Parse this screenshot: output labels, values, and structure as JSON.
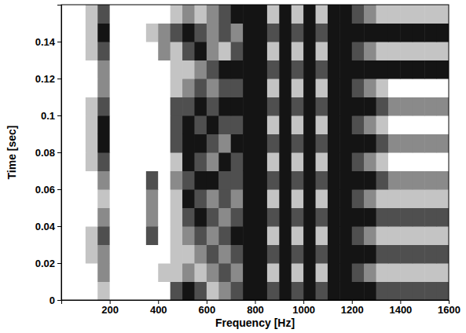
{
  "chart_data": {
    "type": "heatmap",
    "xlabel": "Frequency [Hz]",
    "ylabel": "Time [sec]",
    "xlim": [
      0,
      1600
    ],
    "xticks": [
      200,
      400,
      600,
      800,
      1000,
      1200,
      1400,
      1600
    ],
    "ylim": [
      0,
      0.16
    ],
    "yticks": [
      0,
      0.02,
      0.04,
      0.06,
      0.08,
      0.1,
      0.12,
      0.14
    ],
    "x_bins": [
      0,
      50,
      100,
      150,
      200,
      250,
      300,
      350,
      400,
      450,
      500,
      550,
      600,
      650,
      700,
      750,
      800,
      850,
      900,
      950,
      1000,
      1050,
      1100,
      1150,
      1200,
      1250,
      1300,
      1350,
      1400,
      1450,
      1500,
      1550,
      1600
    ],
    "y_bins": [
      0,
      0.01,
      0.02,
      0.03,
      0.04,
      0.05,
      0.06,
      0.07,
      0.08,
      0.09,
      0.1,
      0.11,
      0.12,
      0.13,
      0.14,
      0.15,
      0.16
    ],
    "cells": [
      [
        0,
        0,
        0,
        1,
        0,
        0,
        0,
        0,
        0,
        3,
        4,
        3,
        1,
        2,
        3,
        4,
        4,
        3,
        4,
        3,
        4,
        3,
        4,
        4,
        4,
        4,
        3,
        3,
        3,
        3,
        3,
        3
      ],
      [
        0,
        0,
        0,
        2,
        0,
        0,
        0,
        0,
        1,
        1,
        2,
        1,
        2,
        3,
        2,
        4,
        4,
        1,
        4,
        1,
        4,
        1,
        4,
        4,
        3,
        2,
        1,
        1,
        1,
        1,
        1,
        1
      ],
      [
        0,
        0,
        1,
        2,
        0,
        0,
        0,
        0,
        0,
        1,
        1,
        2,
        3,
        2,
        3,
        4,
        4,
        3,
        4,
        3,
        4,
        3,
        4,
        4,
        4,
        4,
        3,
        3,
        3,
        3,
        3,
        3
      ],
      [
        0,
        0,
        1,
        3,
        0,
        0,
        0,
        3,
        0,
        1,
        2,
        3,
        2,
        3,
        4,
        4,
        4,
        1,
        4,
        1,
        4,
        1,
        4,
        4,
        3,
        2,
        1,
        1,
        1,
        1,
        1,
        1
      ],
      [
        0,
        0,
        0,
        2,
        0,
        0,
        0,
        2,
        0,
        1,
        3,
        4,
        3,
        2,
        3,
        4,
        4,
        3,
        4,
        3,
        4,
        3,
        4,
        4,
        4,
        4,
        3,
        3,
        3,
        3,
        3,
        3
      ],
      [
        0,
        0,
        0,
        1,
        0,
        0,
        0,
        2,
        0,
        1,
        4,
        3,
        2,
        3,
        2,
        4,
        4,
        1,
        4,
        1,
        4,
        1,
        4,
        4,
        3,
        2,
        1,
        1,
        1,
        1,
        1,
        1
      ],
      [
        0,
        0,
        0,
        2,
        0,
        0,
        0,
        3,
        0,
        2,
        3,
        4,
        4,
        3,
        3,
        4,
        4,
        3,
        4,
        3,
        4,
        3,
        4,
        4,
        4,
        4,
        3,
        2,
        2,
        2,
        2,
        2
      ],
      [
        0,
        0,
        1,
        3,
        0,
        0,
        0,
        0,
        0,
        1,
        4,
        3,
        2,
        4,
        3,
        4,
        4,
        1,
        4,
        1,
        4,
        1,
        4,
        4,
        3,
        2,
        1,
        0,
        0,
        0,
        0,
        0
      ],
      [
        0,
        0,
        1,
        4,
        0,
        0,
        0,
        0,
        0,
        3,
        4,
        4,
        3,
        2,
        4,
        4,
        4,
        3,
        4,
        3,
        4,
        3,
        4,
        4,
        4,
        4,
        3,
        2,
        2,
        2,
        2,
        2
      ],
      [
        0,
        0,
        1,
        4,
        0,
        0,
        0,
        0,
        0,
        3,
        4,
        3,
        4,
        3,
        3,
        4,
        4,
        1,
        4,
        1,
        4,
        1,
        4,
        4,
        3,
        2,
        1,
        0,
        0,
        0,
        0,
        0
      ],
      [
        0,
        0,
        1,
        3,
        0,
        0,
        0,
        0,
        0,
        3,
        3,
        4,
        3,
        4,
        4,
        4,
        4,
        3,
        4,
        3,
        4,
        3,
        4,
        4,
        4,
        4,
        3,
        2,
        2,
        2,
        2,
        2
      ],
      [
        0,
        0,
        0,
        2,
        0,
        0,
        0,
        0,
        0,
        1,
        2,
        3,
        2,
        3,
        3,
        4,
        4,
        1,
        4,
        1,
        4,
        1,
        4,
        4,
        3,
        2,
        1,
        0,
        0,
        0,
        0,
        0
      ],
      [
        0,
        0,
        0,
        2,
        0,
        0,
        0,
        0,
        0,
        1,
        1,
        2,
        3,
        4,
        4,
        4,
        4,
        3,
        4,
        3,
        4,
        3,
        4,
        4,
        4,
        4,
        4,
        4,
        4,
        4,
        4,
        4
      ],
      [
        0,
        0,
        1,
        3,
        0,
        0,
        0,
        0,
        2,
        1,
        3,
        4,
        2,
        1,
        3,
        4,
        4,
        1,
        4,
        1,
        4,
        1,
        4,
        4,
        3,
        2,
        1,
        1,
        1,
        1,
        1,
        1
      ],
      [
        0,
        0,
        1,
        4,
        0,
        0,
        0,
        1,
        2,
        3,
        4,
        3,
        2,
        3,
        2,
        4,
        4,
        3,
        4,
        3,
        4,
        3,
        4,
        4,
        4,
        4,
        4,
        4,
        4,
        4,
        4,
        4
      ],
      [
        0,
        0,
        1,
        3,
        0,
        0,
        0,
        0,
        0,
        1,
        2,
        1,
        2,
        3,
        4,
        4,
        4,
        1,
        4,
        1,
        4,
        1,
        4,
        4,
        3,
        2,
        1,
        1,
        1,
        1,
        1,
        1
      ]
    ]
  }
}
